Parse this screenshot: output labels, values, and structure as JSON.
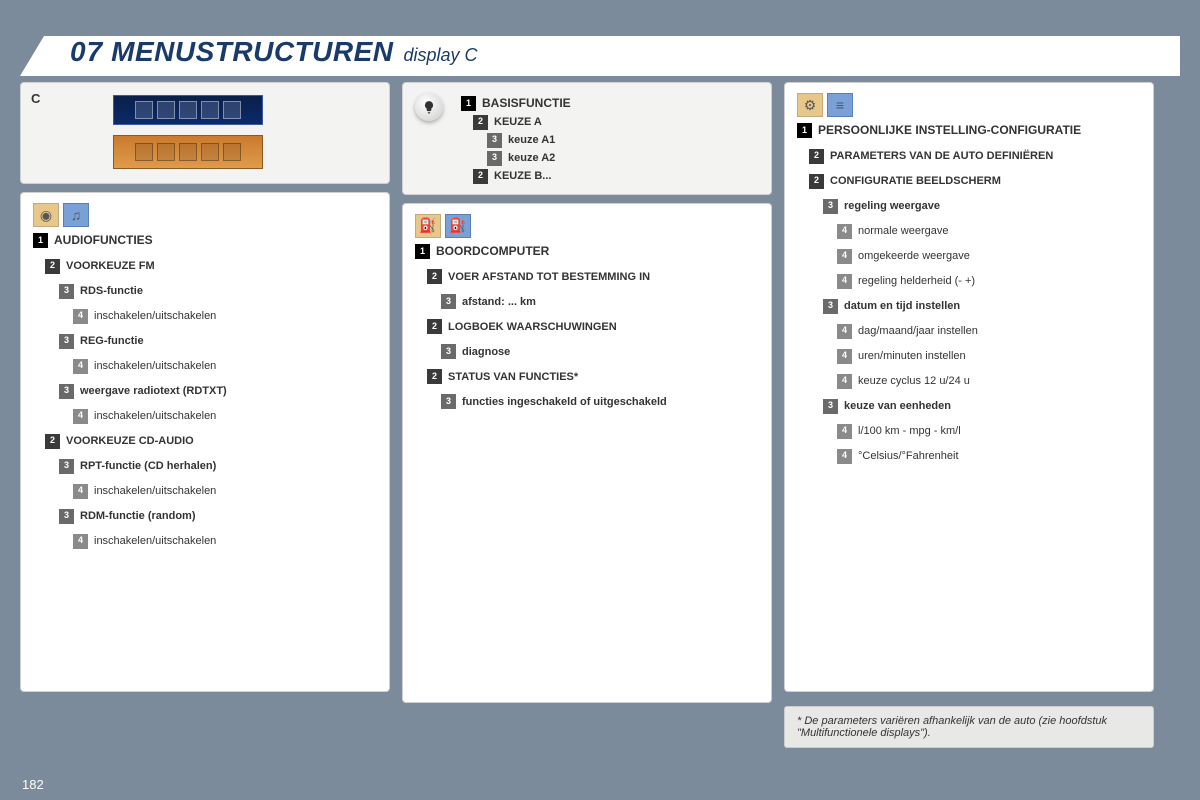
{
  "header": {
    "num": "07",
    "title": "MENUSTRUCTUREN",
    "subtitle": "display C"
  },
  "page_number": "182",
  "displays_label": "C",
  "legend": {
    "title": "BASISFUNCTIE",
    "items": [
      {
        "lvl": 2,
        "text": "KEUZE A"
      },
      {
        "lvl": 3,
        "text": "keuze A1"
      },
      {
        "lvl": 3,
        "text": "keuze A2"
      },
      {
        "lvl": 2,
        "text": "KEUZE B..."
      }
    ]
  },
  "audio": {
    "heading": "AUDIOFUNCTIES",
    "items": [
      {
        "lvl": 2,
        "text": "VOORKEUZE FM",
        "bold": true
      },
      {
        "lvl": 3,
        "text": "RDS-functie",
        "bold": true
      },
      {
        "lvl": 4,
        "text": "inschakelen/uitschakelen"
      },
      {
        "lvl": 3,
        "text": "REG-functie",
        "bold": true
      },
      {
        "lvl": 4,
        "text": "inschakelen/uitschakelen"
      },
      {
        "lvl": 3,
        "text": "weergave radiotext (RDTXT)",
        "bold": true
      },
      {
        "lvl": 4,
        "text": "inschakelen/uitschakelen"
      },
      {
        "lvl": 2,
        "text": "VOORKEUZE CD-AUDIO",
        "bold": true
      },
      {
        "lvl": 3,
        "text": "RPT-functie (CD herhalen)",
        "bold": true
      },
      {
        "lvl": 4,
        "text": "inschakelen/uitschakelen"
      },
      {
        "lvl": 3,
        "text": "RDM-functie (random)",
        "bold": true
      },
      {
        "lvl": 4,
        "text": "inschakelen/uitschakelen"
      }
    ]
  },
  "trip": {
    "heading": "BOORDCOMPUTER",
    "items": [
      {
        "lvl": 2,
        "text": "VOER AFSTAND TOT BESTEMMING IN",
        "bold": true
      },
      {
        "lvl": 3,
        "text": "afstand: ... km",
        "bold": true
      },
      {
        "lvl": 2,
        "text": "LOGBOEK WAARSCHUWINGEN",
        "bold": true
      },
      {
        "lvl": 3,
        "text": "diagnose",
        "bold": true
      },
      {
        "lvl": 2,
        "text": "STATUS VAN FUNCTIES*",
        "bold": true
      },
      {
        "lvl": 3,
        "text": "functies ingeschakeld of uitgeschakeld",
        "bold": true
      }
    ]
  },
  "config": {
    "heading": "PERSOONLIJKE INSTELLING-CONFIGURATIE",
    "items": [
      {
        "lvl": 2,
        "text": "PARAMETERS VAN DE AUTO DEFINIËREN",
        "bold": true
      },
      {
        "lvl": 2,
        "text": "CONFIGURATIE BEELDSCHERM",
        "bold": true
      },
      {
        "lvl": 3,
        "text": "regeling weergave",
        "bold": true
      },
      {
        "lvl": 4,
        "text": "normale weergave"
      },
      {
        "lvl": 4,
        "text": "omgekeerde weergave"
      },
      {
        "lvl": 4,
        "text": "regeling helderheid (- +)"
      },
      {
        "lvl": 3,
        "text": "datum en tijd instellen",
        "bold": true
      },
      {
        "lvl": 4,
        "text": "dag/maand/jaar instellen"
      },
      {
        "lvl": 4,
        "text": "uren/minuten instellen"
      },
      {
        "lvl": 4,
        "text": "keuze cyclus 12 u/24 u"
      },
      {
        "lvl": 3,
        "text": "keuze van eenheden",
        "bold": true
      },
      {
        "lvl": 4,
        "text": "l/100 km - mpg - km/l"
      },
      {
        "lvl": 4,
        "text": "°Celsius/°Fahrenheit"
      }
    ]
  },
  "footnote": "*  De parameters variëren afhankelijk van de auto (zie hoofdstuk \"Multifunctionele displays\")."
}
